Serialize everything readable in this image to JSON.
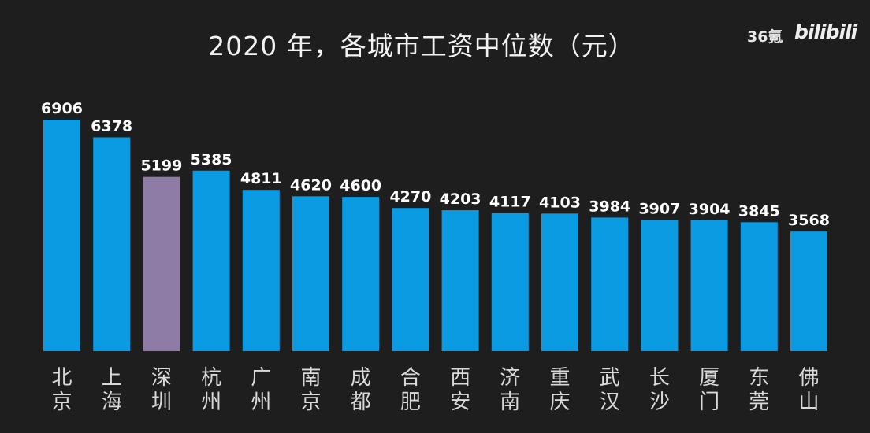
{
  "title": "2020 年，各城市工资中位数（元）",
  "watermark": {
    "source": "36氪",
    "platform": "bilibili"
  },
  "colors": {
    "background": "#1e1e1f",
    "bar": "#0a9be3",
    "highlight_bar": "#8f7ca6",
    "label": "#ffffff",
    "city_label": "#dadada"
  },
  "chart_data": {
    "type": "bar",
    "title": "2020 年，各城市工资中位数（元）",
    "categories": [
      "北京",
      "上海",
      "深圳",
      "杭州",
      "广州",
      "南京",
      "成都",
      "合肥",
      "西安",
      "济南",
      "重庆",
      "武汉",
      "长沙",
      "厦门",
      "东莞",
      "佛山"
    ],
    "values": [
      6906,
      6378,
      5199,
      5385,
      4811,
      4620,
      4600,
      4270,
      4203,
      4117,
      4103,
      3984,
      3907,
      3904,
      3845,
      3568
    ],
    "highlight": "深圳",
    "ylim": [
      0,
      6906
    ],
    "grid": false,
    "legend": "none"
  }
}
